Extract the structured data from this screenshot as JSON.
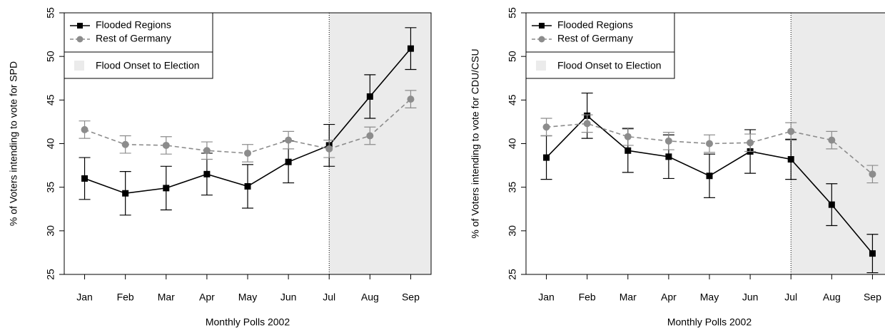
{
  "chart_data": [
    {
      "type": "line",
      "x_label": "Monthly Polls 2002",
      "y_label": "% of Voters intending to vote for SPD",
      "categories": [
        "Jan",
        "Feb",
        "Mar",
        "Apr",
        "May",
        "Jun",
        "Jul",
        "Aug",
        "Sep"
      ],
      "ylim": [
        25,
        55
      ],
      "yticks": [
        25,
        30,
        35,
        40,
        45,
        50,
        55
      ],
      "shade_from": "Jul",
      "shade_label": "Flood Onset to Election",
      "shade_color": "#ebebeb",
      "legend": "top-left",
      "series": [
        {
          "name": "Flooded Regions",
          "color": "#000000",
          "marker": "square",
          "dashed": false,
          "values": [
            36.0,
            34.3,
            34.9,
            36.5,
            35.1,
            37.9,
            39.8,
            45.4,
            50.9
          ],
          "errors": [
            2.4,
            2.5,
            2.5,
            2.4,
            2.5,
            2.4,
            2.4,
            2.5,
            2.4
          ]
        },
        {
          "name": "Rest of Germany",
          "color": "#8c8c8c",
          "marker": "circle",
          "dashed": true,
          "values": [
            41.6,
            39.9,
            39.8,
            39.2,
            38.9,
            40.4,
            39.4,
            40.9,
            45.1
          ],
          "errors": [
            1.0,
            1.0,
            1.0,
            1.0,
            1.0,
            1.0,
            1.0,
            1.0,
            1.0
          ]
        }
      ]
    },
    {
      "type": "line",
      "x_label": "Monthly Polls 2002",
      "y_label": "% of Voters intending to vote for CDU/CSU",
      "categories": [
        "Jan",
        "Feb",
        "Mar",
        "Apr",
        "May",
        "Jun",
        "Jul",
        "Aug",
        "Sep"
      ],
      "ylim": [
        25,
        55
      ],
      "yticks": [
        25,
        30,
        35,
        40,
        45,
        50,
        55
      ],
      "shade_from": "Jul",
      "shade_label": "Flood Onset to Election",
      "shade_color": "#ebebeb",
      "legend": "top-left",
      "series": [
        {
          "name": "Flooded Regions",
          "color": "#000000",
          "marker": "square",
          "dashed": false,
          "values": [
            38.4,
            43.2,
            39.2,
            38.5,
            36.3,
            39.1,
            38.2,
            33.0,
            27.4
          ],
          "errors": [
            2.5,
            2.6,
            2.5,
            2.5,
            2.5,
            2.5,
            2.3,
            2.4,
            2.2
          ]
        },
        {
          "name": "Rest of Germany",
          "color": "#8c8c8c",
          "marker": "circle",
          "dashed": true,
          "values": [
            41.9,
            42.3,
            40.8,
            40.3,
            40.0,
            40.1,
            41.4,
            40.4,
            36.5
          ],
          "errors": [
            1.0,
            1.0,
            1.0,
            1.0,
            1.0,
            1.0,
            1.0,
            1.0,
            1.0
          ]
        }
      ]
    }
  ]
}
